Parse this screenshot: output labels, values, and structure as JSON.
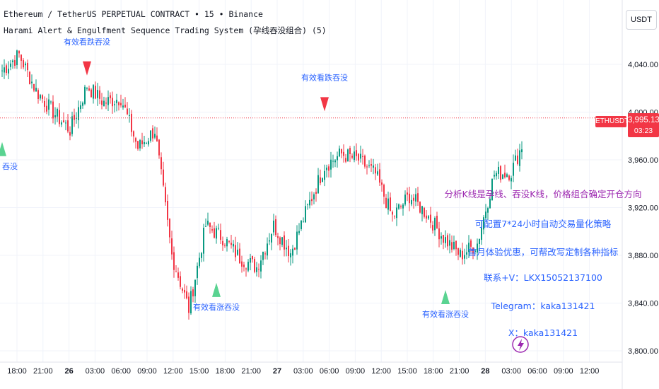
{
  "header": {
    "line1": "Ethereum / TetherUS PERPETUAL CONTRACT • 15 • Binance",
    "line2": "Harami Alert & Engulfment Sequence Trading System (孕线吞没组合) (5)"
  },
  "currency_button": "USDT",
  "symbol_badge": "ETHUSDT.P",
  "last_price": {
    "price": "3,995.13",
    "timer": "03:23"
  },
  "colors": {
    "up": "#089981",
    "down": "#f23645",
    "bear_signal": "#f23645",
    "bull_signal": "#5ad391",
    "signal_text": "#2962ff",
    "grid": "#f0f3fa",
    "price_line": "#f23645"
  },
  "promo_lines": [
    "分析K线是孕线、吞没K线，价格组合确定开仓方向",
    "可配置7*24小时自动交易量化策略",
    "首月体验优惠，可帮改写定制各种指标",
    "联系+V：LKX15052137100",
    "Telegram：kaka131421",
    "X：kaka131421"
  ],
  "chart_data": {
    "type": "candlestick",
    "symbol": "ETHUSDT.P",
    "timeframe": "15",
    "ylim": [
      3790,
      4080
    ],
    "y_ticks": [
      {
        "value": 4040,
        "label": "4,040.00"
      },
      {
        "value": 4000,
        "label": "4,000.00"
      },
      {
        "value": 3960,
        "label": "3,960.00"
      },
      {
        "value": 3920,
        "label": "3,920.00"
      },
      {
        "value": 3880,
        "label": "3,880.00"
      },
      {
        "value": 3840,
        "label": "3,840.00"
      },
      {
        "value": 3800,
        "label": "3,800.00"
      }
    ],
    "x_ticks": [
      {
        "label": "18:00",
        "bold": false
      },
      {
        "label": "21:00",
        "bold": false
      },
      {
        "label": "26",
        "bold": true
      },
      {
        "label": "03:00",
        "bold": false
      },
      {
        "label": "06:00",
        "bold": false
      },
      {
        "label": "09:00",
        "bold": false
      },
      {
        "label": "12:00",
        "bold": false
      },
      {
        "label": "15:00",
        "bold": false
      },
      {
        "label": "18:00",
        "bold": false
      },
      {
        "label": "21:00",
        "bold": false
      },
      {
        "label": "27",
        "bold": true
      },
      {
        "label": "03:00",
        "bold": false
      },
      {
        "label": "06:00",
        "bold": false
      },
      {
        "label": "09:00",
        "bold": false
      },
      {
        "label": "12:00",
        "bold": false
      },
      {
        "label": "15:00",
        "bold": false
      },
      {
        "label": "18:00",
        "bold": false
      },
      {
        "label": "21:00",
        "bold": false
      },
      {
        "label": "28",
        "bold": true
      },
      {
        "label": "03:00",
        "bold": false
      },
      {
        "label": "06:00",
        "bold": false
      },
      {
        "label": "09:00",
        "bold": false
      },
      {
        "label": "12:00",
        "bold": false
      }
    ],
    "last_price": 3995.13,
    "anchors": [
      4035,
      4048,
      4018,
      4000,
      3985,
      4022,
      4008,
      4012,
      3970,
      3985,
      3880,
      3835,
      3905,
      3895,
      3878,
      3870,
      3905,
      3882,
      3920,
      3955,
      3965,
      3960,
      3948,
      3912,
      3930,
      3915,
      3895,
      3880,
      3890,
      3948,
      3950,
      3985,
      4030,
      4065,
      4040,
      4035,
      4030,
      4025,
      4030,
      4025,
      4015,
      4020,
      4012,
      4018,
      3988,
      3978,
      3998,
      4005,
      4022,
      4025,
      4008,
      3990,
      3995
    ],
    "signals": [
      {
        "type": "bear",
        "label": "有效看跌吞没",
        "candle": 40,
        "price": 4020
      },
      {
        "type": "bear",
        "label": "有效看跌吞没",
        "candle": 152,
        "price": 3990
      },
      {
        "type": "bear",
        "label": "有效看跌吞没",
        "candle": 403,
        "price": 4030
      },
      {
        "type": "bull",
        "label": "有效看涨吞没",
        "candle": 101,
        "price": 3870
      },
      {
        "type": "bull",
        "label": "有效看涨吞没",
        "candle": 209,
        "price": 3864
      },
      {
        "type": "bull",
        "label": "吞没",
        "candle": 0,
        "price": 3988
      }
    ]
  }
}
